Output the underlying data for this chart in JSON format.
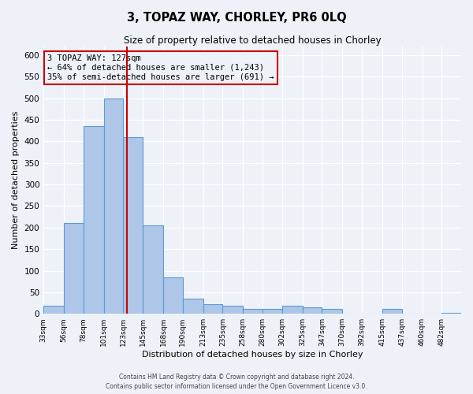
{
  "title": "3, TOPAZ WAY, CHORLEY, PR6 0LQ",
  "subtitle": "Size of property relative to detached houses in Chorley",
  "xlabel": "Distribution of detached houses by size in Chorley",
  "ylabel": "Number of detached properties",
  "bin_labels": [
    "33sqm",
    "56sqm",
    "78sqm",
    "101sqm",
    "123sqm",
    "145sqm",
    "168sqm",
    "190sqm",
    "213sqm",
    "235sqm",
    "258sqm",
    "280sqm",
    "302sqm",
    "325sqm",
    "347sqm",
    "370sqm",
    "392sqm",
    "415sqm",
    "437sqm",
    "460sqm",
    "482sqm"
  ],
  "bin_edges": [
    33,
    56,
    78,
    101,
    123,
    145,
    168,
    190,
    213,
    235,
    258,
    280,
    302,
    325,
    347,
    370,
    392,
    415,
    437,
    460,
    482
  ],
  "bar_heights": [
    18,
    210,
    435,
    500,
    410,
    205,
    85,
    35,
    22,
    18,
    12,
    12,
    18,
    15,
    12,
    0,
    0,
    12,
    0,
    0,
    3
  ],
  "bar_color": "#aec6e8",
  "bar_edge_color": "#5b9bd5",
  "property_size": 127,
  "vline_color": "#cc0000",
  "annotation_line1": "3 TOPAZ WAY: 127sqm",
  "annotation_line2": "← 64% of detached houses are smaller (1,243)",
  "annotation_line3": "35% of semi-detached houses are larger (691) →",
  "annotation_box_edge_color": "#cc0000",
  "ylim": [
    0,
    620
  ],
  "yticks": [
    0,
    50,
    100,
    150,
    200,
    250,
    300,
    350,
    400,
    450,
    500,
    550,
    600
  ],
  "footer_line1": "Contains HM Land Registry data © Crown copyright and database right 2024.",
  "footer_line2": "Contains public sector information licensed under the Open Government Licence v3.0.",
  "bg_color": "#eef2f8",
  "plot_bg_color": "#eef2f8"
}
